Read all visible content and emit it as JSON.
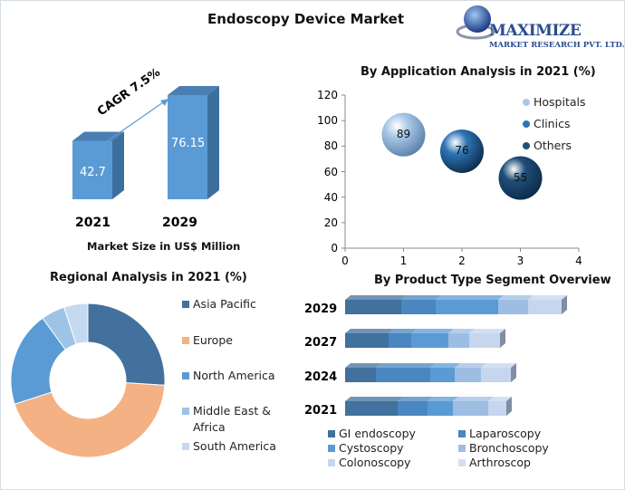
{
  "header": {
    "title": "Endoscopy Device Market",
    "logo_line1": "MAXIMIZE",
    "logo_line2": "MARKET RESEARCH PVT. LTD."
  },
  "colors": {
    "bar": "#5b9bd5",
    "bar_side": "#3d6f9e",
    "asia_pacific": "#41719c",
    "europe": "#f4b183",
    "north_america": "#5b9bd5",
    "middle_east_africa": "#9dc3e6",
    "south_america": "#c5d9f0"
  },
  "chart_data": [
    {
      "type": "bar",
      "categories": [
        "2021",
        "2029"
      ],
      "values": [
        42.7,
        76.15
      ],
      "value_labels": [
        "42.7",
        "76.15"
      ],
      "xlabel": "Market Size in US$ Million",
      "annotation": "CAGR 7.5%"
    },
    {
      "type": "scatter",
      "title": "By Application Analysis in 2021 (%)",
      "xlim": [
        0,
        4
      ],
      "ylim": [
        0,
        120
      ],
      "xticks": [
        "0",
        "1",
        "2",
        "3",
        "4"
      ],
      "yticks": [
        "0",
        "20",
        "40",
        "60",
        "80",
        "100",
        "120"
      ],
      "legend_position": "top-right",
      "series": [
        {
          "name": "Hospitals",
          "x": 1,
          "y": 89,
          "label": "89",
          "color": "#a9c8e8"
        },
        {
          "name": "Clinics",
          "x": 2,
          "y": 76,
          "label": "76",
          "color": "#2e75b6"
        },
        {
          "name": "Others",
          "x": 3,
          "y": 55,
          "label": "55",
          "color": "#1f4e79"
        }
      ]
    },
    {
      "type": "pie",
      "title": "Regional Analysis in 2021 (%)",
      "donut": true,
      "legend_position": "right",
      "labels": [
        "Asia Pacific",
        "Europe",
        "North America",
        "Middle East & Africa",
        "South America"
      ],
      "values": [
        26,
        44,
        20,
        5,
        5
      ]
    },
    {
      "type": "bar",
      "orientation": "horizontal",
      "stacked": true,
      "title": "By Product Type Segment Overview",
      "categories": [
        "2029",
        "2027",
        "2024",
        "2021"
      ],
      "legend_position": "bottom",
      "series": [
        {
          "name": "GI endoscopy",
          "color": "#41719c",
          "values": [
            62,
            48,
            34,
            58
          ]
        },
        {
          "name": "Laparoscopy",
          "color": "#4a86bf",
          "values": [
            38,
            25,
            60,
            33
          ]
        },
        {
          "name": "Cystoscopy",
          "color": "#5b9bd5",
          "values": [
            69,
            41,
            27,
            28
          ]
        },
        {
          "name": "Bronchoscopy",
          "color": "#9dbde3",
          "values": [
            33,
            23,
            29,
            39
          ]
        },
        {
          "name": "Colonoscopy",
          "color": "#c5d6ee",
          "values": [
            37,
            34,
            33,
            20
          ]
        },
        {
          "name": "Arthroscop",
          "color": "#d3dff0",
          "values": [
            0,
            0,
            0,
            0
          ]
        }
      ]
    }
  ]
}
